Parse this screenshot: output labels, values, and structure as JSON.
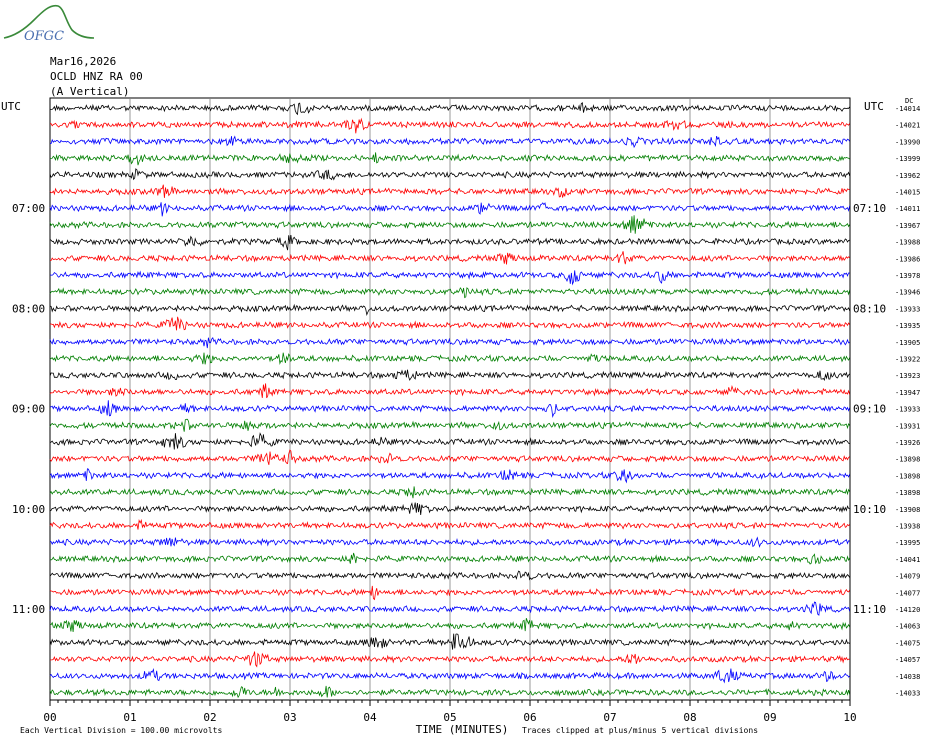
{
  "logo": {
    "text": "OFGC"
  },
  "header": {
    "date": "Mar16,2026",
    "station": "OCLD HNZ RA 00",
    "component": "(A Vertical)"
  },
  "chart_data": {
    "type": "line",
    "title": "",
    "xlabel": "TIME (MINUTES)",
    "x_ticks": [
      "00",
      "01",
      "02",
      "03",
      "04",
      "05",
      "06",
      "07",
      "08",
      "09",
      "10"
    ],
    "xlim": [
      0,
      10
    ],
    "left_axis_title": "UTC",
    "right_axis_title": "UTC",
    "left_time_labels": [
      {
        "row": 6,
        "label": "07:00"
      },
      {
        "row": 12,
        "label": "08:00"
      },
      {
        "row": 18,
        "label": "09:00"
      },
      {
        "row": 24,
        "label": "10:00"
      },
      {
        "row": 30,
        "label": "11:00"
      }
    ],
    "right_time_labels": [
      {
        "row": 6,
        "label": "07:10"
      },
      {
        "row": 12,
        "label": "08:10"
      },
      {
        "row": 18,
        "label": "09:10"
      },
      {
        "row": 24,
        "label": "10:10"
      },
      {
        "row": 30,
        "label": "11:10"
      }
    ],
    "right_top_unit": "DC",
    "trace_colors": [
      "#000000",
      "#ff0000",
      "#0000ff",
      "#007f00"
    ],
    "trace_offsets": [
      "-14014",
      "-14021",
      "-13990",
      "-13999",
      "-13962",
      "-14015",
      "-14011",
      "-13967",
      "-13988",
      "-13986",
      "-13978",
      "-13946",
      "-13933",
      "-13935",
      "-13905",
      "-13922",
      "-13923",
      "-13947",
      "-13933",
      "-13931",
      "-13926",
      "-13898",
      "-13898",
      "-13898",
      "-13908",
      "-13938",
      "-13995",
      "-14041",
      "-14079",
      "-14077",
      "-14120",
      "-14063",
      "-14075",
      "-14057",
      "-14038",
      "-14033"
    ],
    "scale_note": "Each Vertical Division =  100.00 microvolts",
    "clip_note": "Traces clipped at plus/minus 5 vertical divisions"
  }
}
